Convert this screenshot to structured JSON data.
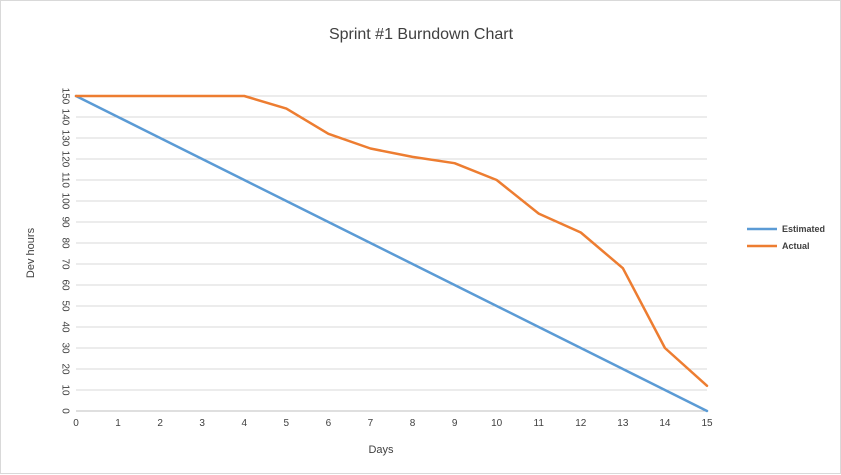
{
  "chart_data": {
    "type": "line",
    "title": "Sprint #1 Burndown Chart",
    "xlabel": "Days",
    "ylabel": "Dev hours",
    "x": [
      0,
      1,
      2,
      3,
      4,
      5,
      6,
      7,
      8,
      9,
      10,
      11,
      12,
      13,
      14,
      15
    ],
    "xlim": [
      0,
      15
    ],
    "ylim": [
      0,
      150
    ],
    "y_ticks": [
      0,
      10,
      20,
      30,
      40,
      50,
      60,
      70,
      80,
      90,
      100,
      110,
      120,
      130,
      140,
      150
    ],
    "grid": true,
    "legend_position": "right",
    "series": [
      {
        "name": "Estimated",
        "color": "#5b9bd5",
        "values": [
          150,
          140,
          130,
          120,
          110,
          100,
          90,
          80,
          70,
          60,
          50,
          40,
          30,
          20,
          10,
          0
        ]
      },
      {
        "name": "Actual",
        "color": "#ed7d31",
        "values": [
          150,
          150,
          150,
          150,
          150,
          144,
          132,
          125,
          121,
          118,
          110,
          94,
          85,
          68,
          30,
          12
        ]
      }
    ]
  }
}
